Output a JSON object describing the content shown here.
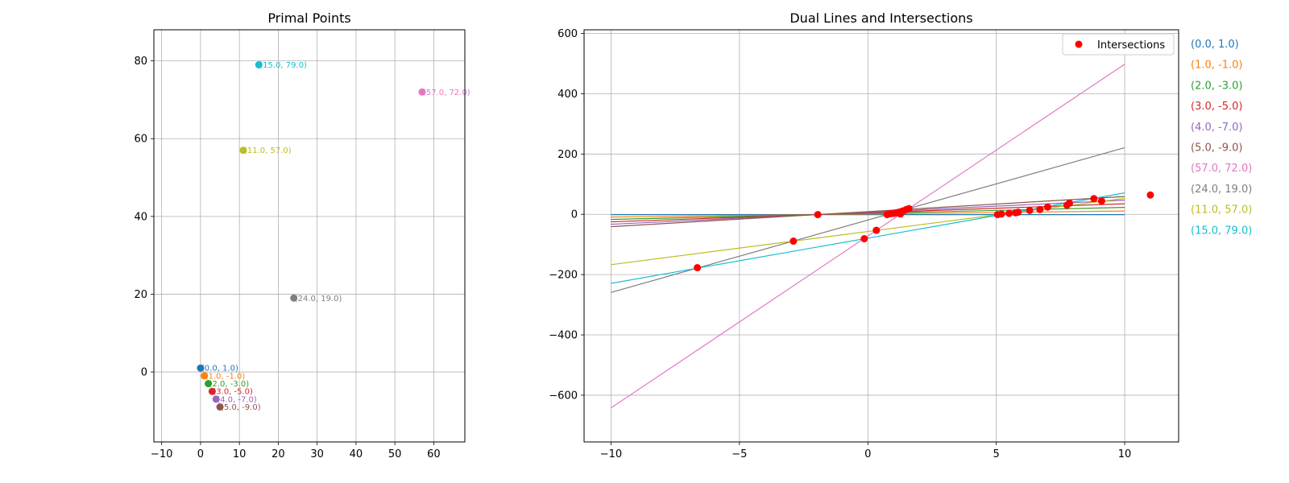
{
  "colors": [
    "#1f77b4",
    "#ff7f0e",
    "#2ca02c",
    "#d62728",
    "#9467bd",
    "#8c564b",
    "#e377c2",
    "#7f7f7f",
    "#bcbd22",
    "#17becf"
  ],
  "intersection_color": "#ff0000",
  "chart_data": [
    {
      "type": "scatter",
      "title": "Primal Points",
      "xlabel": "",
      "ylabel": "",
      "xlim": [
        -12,
        68
      ],
      "ylim": [
        -18,
        88
      ],
      "xticks": [
        -10,
        0,
        10,
        20,
        30,
        40,
        50,
        60
      ],
      "yticks": [
        0,
        20,
        40,
        60,
        80
      ],
      "grid": true,
      "points": [
        {
          "x": 0,
          "y": 1,
          "label": "(0.0, 1.0)"
        },
        {
          "x": 1,
          "y": -1,
          "label": "(1.0, -1.0)"
        },
        {
          "x": 2,
          "y": -3,
          "label": "(2.0, -3.0)"
        },
        {
          "x": 3,
          "y": -5,
          "label": "(3.0, -5.0)"
        },
        {
          "x": 4,
          "y": -7,
          "label": "(4.0, -7.0)"
        },
        {
          "x": 5,
          "y": -9,
          "label": "(5.0, -9.0)"
        },
        {
          "x": 57,
          "y": 72,
          "label": "(57.0, 72.0)"
        },
        {
          "x": 24,
          "y": 19,
          "label": "(24.0, 19.0)"
        },
        {
          "x": 11,
          "y": 57,
          "label": "(11.0, 57.0)"
        },
        {
          "x": 15,
          "y": 79,
          "label": "(15.0, 79.0)"
        }
      ]
    },
    {
      "type": "line",
      "title": "Dual Lines and Intersections",
      "xlabel": "",
      "ylabel": "",
      "xlim": [
        -11.05,
        12.1
      ],
      "ylim": [
        -755,
        612
      ],
      "xticks": [
        -10,
        -5,
        0,
        5,
        10
      ],
      "yticks": [
        -600,
        -400,
        -200,
        0,
        200,
        400,
        600
      ],
      "grid": true,
      "legend": {
        "position": "top-right",
        "entries": [
          "Intersections"
        ]
      },
      "lines": [
        {
          "name": "(0.0, 1.0)",
          "x": [
            -10,
            10
          ],
          "y": [
            -1,
            -1
          ]
        },
        {
          "name": "(1.0, -1.0)",
          "x": [
            -10,
            10
          ],
          "y": [
            -9,
            11
          ]
        },
        {
          "name": "(2.0, -3.0)",
          "x": [
            -10,
            10
          ],
          "y": [
            -17,
            23
          ]
        },
        {
          "name": "(3.0, -5.0)",
          "x": [
            -10,
            10
          ],
          "y": [
            -25,
            35
          ]
        },
        {
          "name": "(4.0, -7.0)",
          "x": [
            -10,
            10
          ],
          "y": [
            -33,
            47
          ]
        },
        {
          "name": "(5.0, -9.0)",
          "x": [
            -10,
            10
          ],
          "y": [
            -41,
            59
          ]
        },
        {
          "name": "(57.0, 72.0)",
          "x": [
            -10,
            10
          ],
          "y": [
            -642,
            498
          ]
        },
        {
          "name": "(24.0, 19.0)",
          "x": [
            -10,
            10
          ],
          "y": [
            -259,
            221
          ]
        },
        {
          "name": "(11.0, 57.0)",
          "x": [
            -10,
            10
          ],
          "y": [
            -167,
            53
          ]
        },
        {
          "name": "(15.0, 79.0)",
          "x": [
            -10,
            10
          ],
          "y": [
            -229,
            71
          ]
        }
      ],
      "intersections": [
        {
          "x": -6.64,
          "y": -177
        },
        {
          "x": -2.9,
          "y": -89
        },
        {
          "x": -1.95,
          "y": -1
        },
        {
          "x": -0.14,
          "y": -81
        },
        {
          "x": 0.33,
          "y": -53
        },
        {
          "x": 0.75,
          "y": -1
        },
        {
          "x": 0.88,
          "y": 2
        },
        {
          "x": 1.0,
          "y": 3
        },
        {
          "x": 1.1,
          "y": 5
        },
        {
          "x": 1.2,
          "y": 7
        },
        {
          "x": 1.27,
          "y": 1
        },
        {
          "x": 1.32,
          "y": 10
        },
        {
          "x": 1.4,
          "y": 12
        },
        {
          "x": 1.5,
          "y": 16
        },
        {
          "x": 1.6,
          "y": 19
        },
        {
          "x": 5.05,
          "y": -1
        },
        {
          "x": 5.2,
          "y": 1
        },
        {
          "x": 5.5,
          "y": 3
        },
        {
          "x": 5.75,
          "y": 5
        },
        {
          "x": 5.85,
          "y": 7
        },
        {
          "x": 6.3,
          "y": 13
        },
        {
          "x": 6.7,
          "y": 16
        },
        {
          "x": 7.0,
          "y": 24
        },
        {
          "x": 7.75,
          "y": 30
        },
        {
          "x": 7.85,
          "y": 37
        },
        {
          "x": 8.8,
          "y": 52
        },
        {
          "x": 9.1,
          "y": 44
        },
        {
          "x": 11.0,
          "y": 64
        }
      ],
      "side_labels": [
        "(0.0, 1.0)",
        "(1.0, -1.0)",
        "(2.0, -3.0)",
        "(3.0, -5.0)",
        "(4.0, -7.0)",
        "(5.0, -9.0)",
        "(57.0, 72.0)",
        "(24.0, 19.0)",
        "(11.0, 57.0)",
        "(15.0, 79.0)"
      ]
    }
  ]
}
